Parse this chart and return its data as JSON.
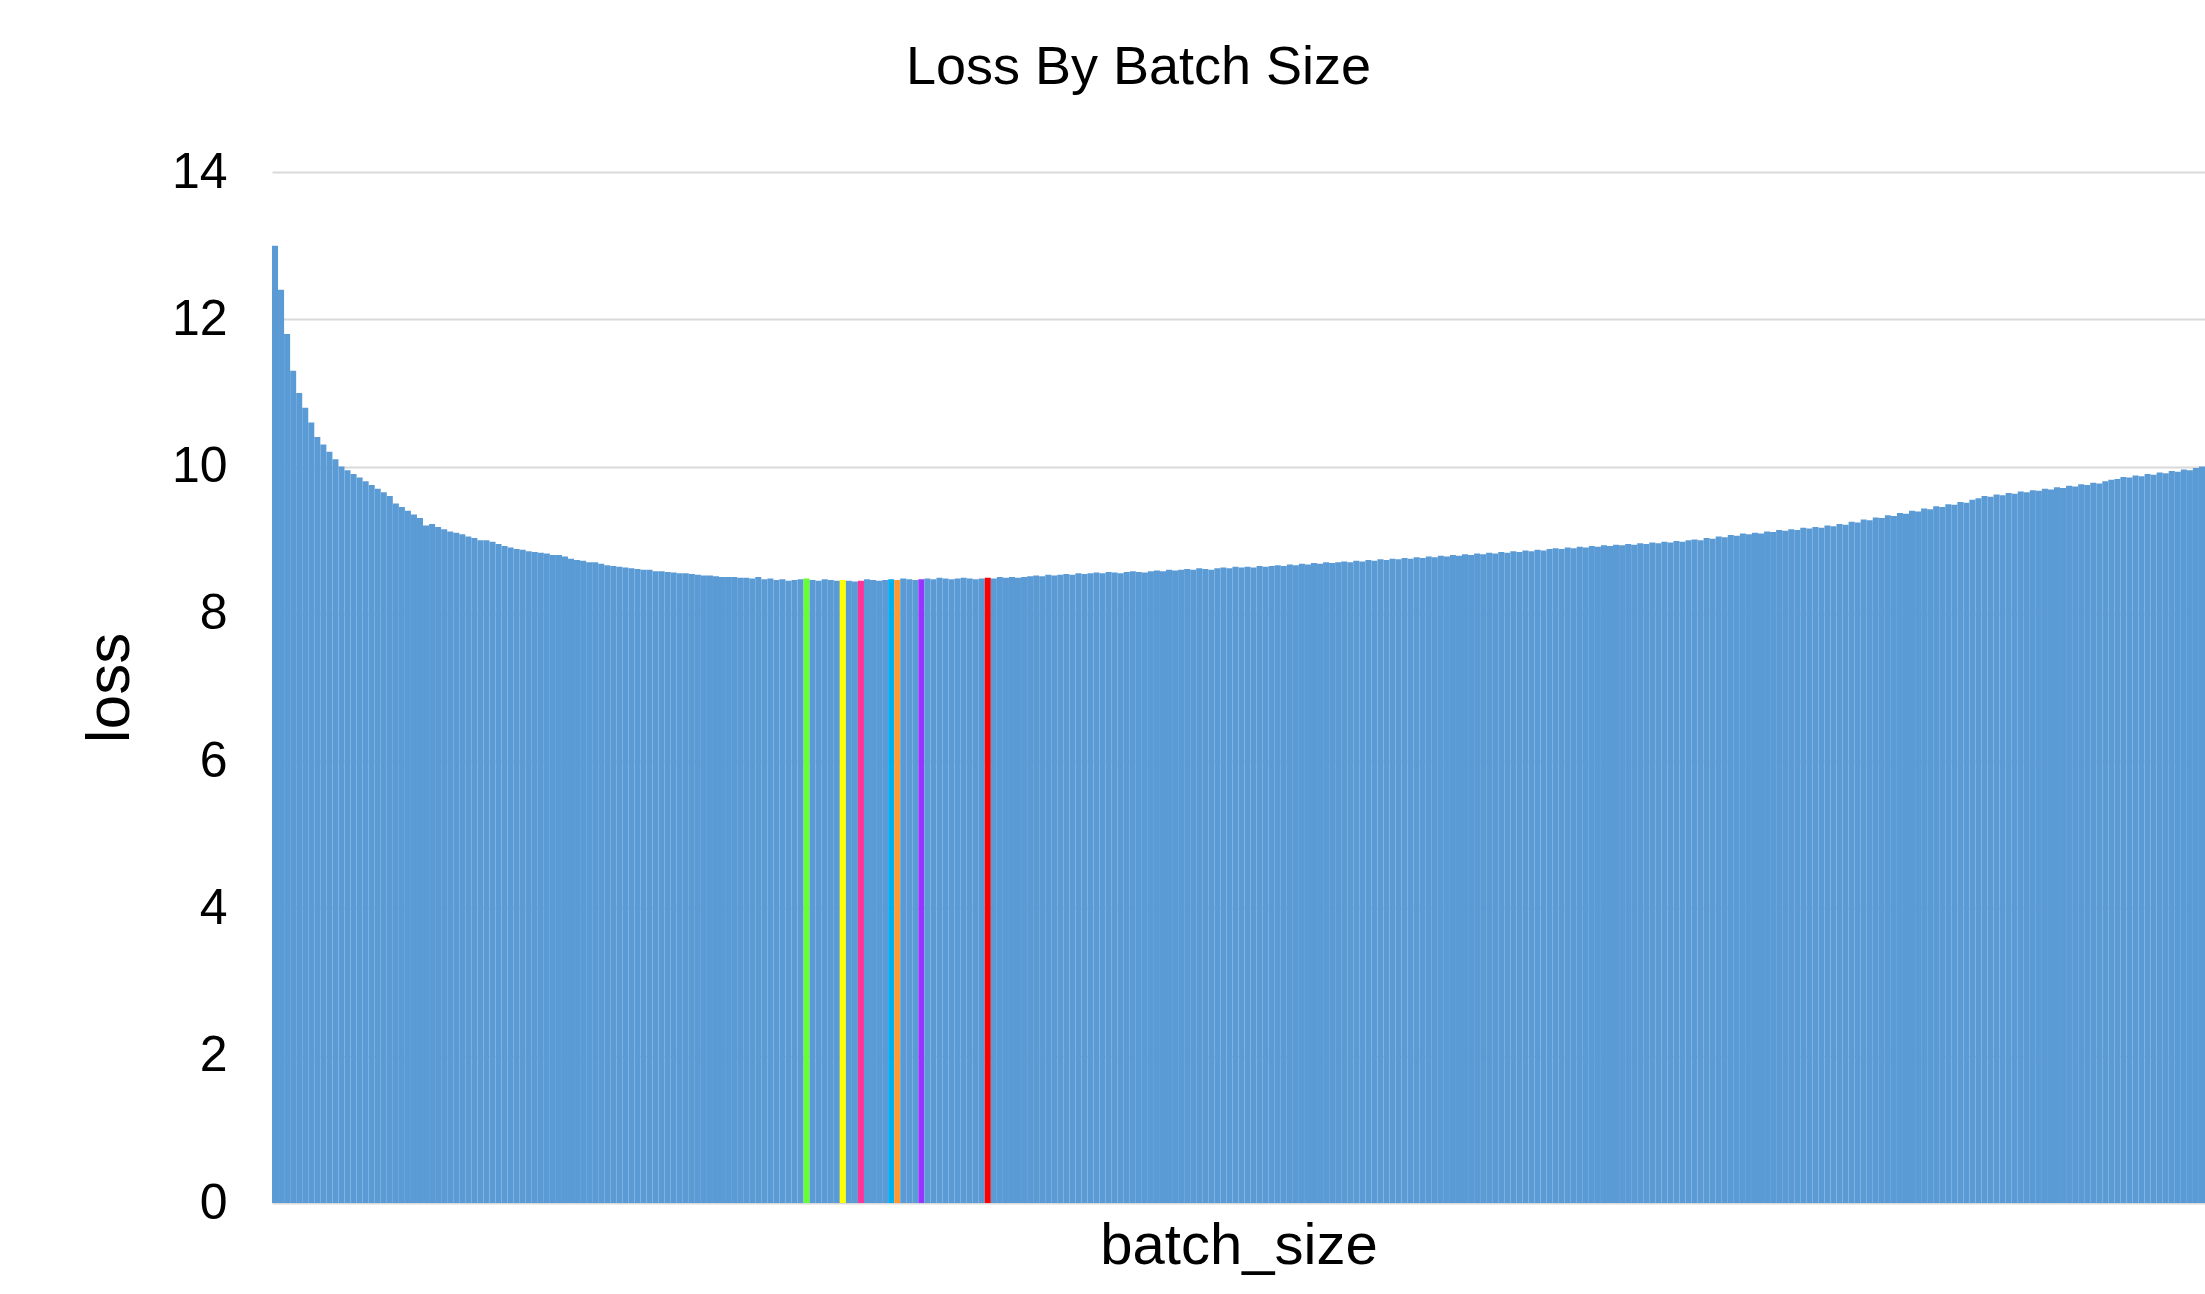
{
  "chart_data": {
    "type": "bar",
    "title": "Loss By Batch Size",
    "xlabel": "batch_size",
    "ylabel": "loss",
    "categories": [
      null,
      null,
      null,
      null,
      null,
      null,
      null,
      null,
      null,
      null,
      null,
      null,
      null,
      null,
      null,
      null,
      null,
      null,
      null,
      null,
      null,
      null,
      null,
      null,
      null,
      null,
      null,
      null,
      null,
      null,
      null,
      null,
      null,
      null,
      null,
      null,
      null,
      null,
      null,
      null,
      null,
      null,
      null,
      null,
      null,
      null,
      null,
      null,
      null,
      null,
      null,
      null,
      null,
      null,
      null,
      null,
      null,
      null,
      null,
      null,
      null,
      null,
      null,
      null,
      null,
      null,
      null,
      null,
      null,
      null,
      null,
      null,
      null,
      null,
      null,
      null,
      null,
      null,
      null,
      null,
      null,
      null,
      null,
      null,
      null,
      null,
      null,
      null,
      null,
      null,
      null,
      null,
      null,
      null,
      null,
      null,
      null,
      null,
      null,
      null,
      null,
      null,
      null,
      null,
      null,
      null,
      null,
      null,
      null,
      null,
      null,
      null,
      null,
      null,
      null,
      null,
      null,
      null,
      null,
      null,
      null,
      null,
      null,
      null,
      null,
      null,
      null,
      null,
      null,
      null,
      null,
      null,
      null,
      null,
      null,
      null,
      null,
      null,
      null,
      null,
      null,
      null,
      null,
      null,
      null,
      null,
      null,
      null,
      null,
      null,
      null,
      null,
      null,
      null,
      null,
      null,
      null,
      null,
      null,
      null,
      null,
      null,
      null,
      null,
      null,
      null,
      null,
      null,
      null,
      null,
      null,
      null,
      null,
      null,
      null,
      null,
      null,
      null,
      null,
      null,
      null,
      null,
      null,
      null,
      null,
      null,
      null,
      null,
      null,
      null,
      null,
      null,
      null,
      null,
      null,
      null,
      null,
      null,
      null,
      null,
      null,
      null,
      null,
      null,
      null,
      null,
      null,
      null,
      null,
      null,
      null,
      null,
      null,
      null,
      null,
      null,
      null,
      null,
      null,
      null,
      null,
      null,
      null,
      null,
      null,
      null,
      null,
      null,
      null,
      null,
      null,
      null,
      null,
      null,
      null,
      null,
      null,
      null,
      null,
      null,
      null,
      null,
      null,
      null,
      null,
      null,
      null,
      null,
      null,
      null,
      null,
      null,
      null,
      null,
      null,
      null,
      null,
      null,
      null,
      null,
      null,
      null,
      null,
      null,
      null,
      null,
      null,
      null,
      null,
      null,
      null,
      null,
      null,
      null,
      null,
      null,
      null,
      null,
      null,
      null,
      null,
      null,
      null,
      null,
      null,
      null,
      null,
      null,
      null,
      null,
      null,
      null,
      null,
      null,
      null,
      null,
      null,
      null,
      null,
      null,
      null,
      null,
      null,
      null,
      null,
      null,
      null,
      null,
      null,
      null,
      null,
      null,
      null,
      null,
      null,
      null,
      null,
      null,
      null,
      null
    ],
    "values": [
      13.0,
      12.4,
      11.8,
      11.3,
      11.0,
      10.8,
      10.6,
      10.4,
      10.3,
      10.2,
      10.1,
      10.0,
      9.95,
      9.9,
      9.85,
      9.8,
      9.75,
      9.7,
      9.65,
      9.6,
      9.5,
      9.45,
      9.4,
      9.35,
      9.3,
      9.2,
      9.22,
      9.18,
      9.15,
      9.12,
      9.1,
      9.08,
      9.05,
      9.03,
      9.0,
      9.0,
      8.98,
      8.95,
      8.92,
      8.9,
      8.88,
      8.87,
      8.85,
      8.84,
      8.83,
      8.82,
      8.8,
      8.8,
      8.78,
      8.75,
      8.73,
      8.72,
      8.7,
      8.7,
      8.68,
      8.66,
      8.65,
      8.64,
      8.63,
      8.62,
      8.61,
      8.6,
      8.6,
      8.58,
      8.58,
      8.57,
      8.56,
      8.55,
      8.55,
      8.54,
      8.53,
      8.52,
      8.52,
      8.51,
      8.5,
      8.5,
      8.5,
      8.49,
      8.49,
      8.48,
      8.5,
      8.47,
      8.48,
      8.46,
      8.47,
      8.45,
      8.46,
      8.47,
      8.48,
      8.46,
      8.45,
      8.47,
      8.46,
      8.45,
      8.46,
      8.45,
      8.44,
      8.45,
      8.47,
      8.46,
      8.45,
      8.46,
      8.47,
      8.46,
      8.48,
      8.47,
      8.46,
      8.47,
      8.48,
      8.47,
      8.49,
      8.48,
      8.47,
      8.48,
      8.49,
      8.48,
      8.47,
      8.48,
      8.49,
      8.48,
      8.5,
      8.49,
      8.5,
      8.49,
      8.5,
      8.51,
      8.52,
      8.51,
      8.53,
      8.52,
      8.53,
      8.54,
      8.53,
      8.55,
      8.54,
      8.55,
      8.56,
      8.55,
      8.57,
      8.56,
      8.55,
      8.57,
      8.58,
      8.57,
      8.56,
      8.58,
      8.59,
      8.58,
      8.6,
      8.59,
      8.6,
      8.61,
      8.6,
      8.62,
      8.61,
      8.6,
      8.62,
      8.63,
      8.62,
      8.64,
      8.63,
      8.64,
      8.63,
      8.65,
      8.64,
      8.65,
      8.66,
      8.65,
      8.67,
      8.66,
      8.68,
      8.67,
      8.69,
      8.68,
      8.7,
      8.69,
      8.7,
      8.71,
      8.7,
      8.72,
      8.71,
      8.73,
      8.72,
      8.74,
      8.73,
      8.75,
      8.74,
      8.76,
      8.75,
      8.77,
      8.76,
      8.78,
      8.77,
      8.79,
      8.78,
      8.8,
      8.79,
      8.81,
      8.8,
      8.82,
      8.81,
      8.83,
      8.82,
      8.84,
      8.83,
      8.85,
      8.84,
      8.86,
      8.85,
      8.87,
      8.86,
      8.88,
      8.89,
      8.88,
      8.9,
      8.89,
      8.91,
      8.9,
      8.92,
      8.91,
      8.93,
      8.92,
      8.94,
      8.93,
      8.95,
      8.94,
      8.96,
      8.95,
      8.97,
      8.96,
      8.98,
      8.97,
      8.99,
      8.98,
      9.0,
      9.01,
      9.0,
      9.03,
      9.02,
      9.05,
      9.04,
      9.07,
      9.06,
      9.09,
      9.08,
      9.1,
      9.09,
      9.12,
      9.11,
      9.14,
      9.13,
      9.15,
      9.14,
      9.17,
      9.16,
      9.18,
      9.17,
      9.2,
      9.19,
      9.22,
      9.21,
      9.25,
      9.24,
      9.28,
      9.27,
      9.31,
      9.3,
      9.34,
      9.33,
      9.37,
      9.36,
      9.4,
      9.39,
      9.43,
      9.42,
      9.46,
      9.45,
      9.49,
      9.48,
      9.52,
      9.51,
      9.55,
      9.57,
      9.6,
      9.59,
      9.62,
      9.61,
      9.64,
      9.63,
      9.66,
      9.65,
      9.68,
      9.67,
      9.7,
      9.69,
      9.72,
      9.71,
      9.74,
      9.73,
      9.76,
      9.75,
      9.78,
      9.77,
      9.8,
      9.82,
      9.83,
      9.86,
      9.85,
      9.88,
      9.87,
      9.9,
      9.89,
      9.92,
      9.91,
      9.94,
      9.93,
      9.96,
      9.95,
      9.98,
      10.0
    ],
    "colors": [
      "#5b9bd5",
      "#5b9bd5",
      "#5b9bd5",
      "#5b9bd5",
      "#5b9bd5",
      "#5b9bd5",
      "#5b9bd5",
      "#5b9bd5",
      "#5b9bd5",
      "#5b9bd5",
      "#5b9bd5",
      "#5b9bd5",
      "#5b9bd5",
      "#5b9bd5",
      "#5b9bd5",
      "#5b9bd5",
      "#5b9bd5",
      "#5b9bd5",
      "#5b9bd5",
      "#5b9bd5",
      "#5b9bd5",
      "#5b9bd5",
      "#5b9bd5",
      "#5b9bd5",
      "#5b9bd5",
      "#5b9bd5",
      "#5b9bd5",
      "#5b9bd5",
      "#5b9bd5",
      "#5b9bd5",
      "#5b9bd5",
      "#5b9bd5",
      "#5b9bd5",
      "#5b9bd5",
      "#5b9bd5",
      "#5b9bd5",
      "#5b9bd5",
      "#5b9bd5",
      "#5b9bd5",
      "#5b9bd5",
      "#5b9bd5",
      "#5b9bd5",
      "#5b9bd5",
      "#5b9bd5",
      "#5b9bd5",
      "#5b9bd5",
      "#5b9bd5",
      "#5b9bd5",
      "#5b9bd5",
      "#5b9bd5",
      "#5b9bd5",
      "#5b9bd5",
      "#5b9bd5",
      "#5b9bd5",
      "#5b9bd5",
      "#5b9bd5",
      "#5b9bd5",
      "#5b9bd5",
      "#5b9bd5",
      "#5b9bd5",
      "#5b9bd5",
      "#5b9bd5",
      "#5b9bd5",
      "#5b9bd5",
      "#5b9bd5",
      "#5b9bd5",
      "#5b9bd5",
      "#5b9bd5",
      "#5b9bd5",
      "#5b9bd5",
      "#5b9bd5",
      "#5b9bd5",
      "#5b9bd5",
      "#5b9bd5",
      "#5b9bd5",
      "#5b9bd5",
      "#5b9bd5",
      "#5b9bd5",
      "#5b9bd5",
      "#5b9bd5",
      "#5b9bd5",
      "#5b9bd5",
      "#5b9bd5",
      "#5b9bd5",
      "#5b9bd5",
      "#5b9bd5",
      "#5b9bd5",
      "#5b9bd5",
      "#66ff33",
      "#5b9bd5",
      "#5b9bd5",
      "#5b9bd5",
      "#5b9bd5",
      "#5b9bd5",
      "#ffff00",
      "#5b9bd5",
      "#5b9bd5",
      "#ff3399",
      "#5b9bd5",
      "#5b9bd5",
      "#5b9bd5",
      "#5b9bd5",
      "#00b0f0",
      "#ff9933",
      "#5b9bd5",
      "#5b9bd5",
      "#5b9bd5",
      "#9933ff",
      "#5b9bd5",
      "#5b9bd5",
      "#5b9bd5",
      "#5b9bd5",
      "#5b9bd5",
      "#5b9bd5",
      "#5b9bd5",
      "#5b9bd5",
      "#5b9bd5",
      "#5b9bd5",
      "#ff0000",
      "#5b9bd5",
      "#5b9bd5",
      "#5b9bd5",
      "#5b9bd5",
      "#5b9bd5",
      "#5b9bd5",
      "#5b9bd5",
      "#5b9bd5",
      "#5b9bd5",
      "#5b9bd5",
      "#5b9bd5",
      "#5b9bd5",
      "#5b9bd5",
      "#5b9bd5",
      "#5b9bd5",
      "#5b9bd5",
      "#5b9bd5",
      "#5b9bd5",
      "#5b9bd5",
      "#5b9bd5",
      "#5b9bd5",
      "#5b9bd5",
      "#5b9bd5",
      "#5b9bd5",
      "#5b9bd5",
      "#5b9bd5",
      "#5b9bd5",
      "#5b9bd5",
      "#5b9bd5",
      "#5b9bd5",
      "#5b9bd5",
      "#5b9bd5",
      "#5b9bd5",
      "#5b9bd5",
      "#5b9bd5",
      "#5b9bd5",
      "#5b9bd5",
      "#5b9bd5",
      "#5b9bd5",
      "#5b9bd5",
      "#5b9bd5",
      "#5b9bd5",
      "#5b9bd5",
      "#5b9bd5",
      "#5b9bd5",
      "#5b9bd5",
      "#5b9bd5",
      "#5b9bd5",
      "#5b9bd5",
      "#5b9bd5",
      "#5b9bd5",
      "#5b9bd5",
      "#5b9bd5",
      "#5b9bd5",
      "#5b9bd5",
      "#5b9bd5",
      "#5b9bd5",
      "#5b9bd5",
      "#5b9bd5",
      "#5b9bd5",
      "#5b9bd5",
      "#5b9bd5",
      "#5b9bd5",
      "#5b9bd5",
      "#5b9bd5",
      "#5b9bd5",
      "#5b9bd5",
      "#5b9bd5",
      "#5b9bd5",
      "#5b9bd5",
      "#5b9bd5",
      "#5b9bd5",
      "#5b9bd5",
      "#5b9bd5",
      "#5b9bd5",
      "#5b9bd5",
      "#5b9bd5",
      "#5b9bd5",
      "#5b9bd5",
      "#5b9bd5",
      "#5b9bd5",
      "#5b9bd5",
      "#5b9bd5",
      "#5b9bd5",
      "#5b9bd5",
      "#5b9bd5",
      "#5b9bd5",
      "#5b9bd5",
      "#5b9bd5",
      "#5b9bd5",
      "#5b9bd5",
      "#5b9bd5",
      "#5b9bd5",
      "#5b9bd5",
      "#5b9bd5",
      "#5b9bd5",
      "#5b9bd5",
      "#5b9bd5",
      "#5b9bd5",
      "#5b9bd5",
      "#5b9bd5",
      "#5b9bd5",
      "#5b9bd5",
      "#5b9bd5",
      "#5b9bd5",
      "#5b9bd5",
      "#5b9bd5",
      "#5b9bd5",
      "#5b9bd5",
      "#5b9bd5",
      "#5b9bd5",
      "#5b9bd5",
      "#5b9bd5",
      "#5b9bd5",
      "#5b9bd5",
      "#5b9bd5",
      "#5b9bd5",
      "#5b9bd5",
      "#5b9bd5",
      "#5b9bd5",
      "#5b9bd5",
      "#5b9bd5",
      "#5b9bd5",
      "#5b9bd5",
      "#5b9bd5",
      "#5b9bd5",
      "#5b9bd5",
      "#5b9bd5",
      "#5b9bd5",
      "#5b9bd5",
      "#5b9bd5",
      "#5b9bd5",
      "#5b9bd5",
      "#5b9bd5",
      "#5b9bd5",
      "#5b9bd5",
      "#5b9bd5",
      "#5b9bd5",
      "#5b9bd5",
      "#5b9bd5",
      "#5b9bd5",
      "#5b9bd5",
      "#5b9bd5",
      "#5b9bd5",
      "#5b9bd5",
      "#5b9bd5",
      "#5b9bd5",
      "#5b9bd5",
      "#5b9bd5",
      "#5b9bd5",
      "#5b9bd5",
      "#5b9bd5",
      "#5b9bd5",
      "#5b9bd5",
      "#5b9bd5",
      "#5b9bd5",
      "#5b9bd5",
      "#5b9bd5",
      "#5b9bd5",
      "#5b9bd5",
      "#5b9bd5",
      "#5b9bd5",
      "#5b9bd5",
      "#5b9bd5",
      "#5b9bd5",
      "#5b9bd5",
      "#5b9bd5",
      "#5b9bd5",
      "#5b9bd5",
      "#5b9bd5",
      "#5b9bd5",
      "#5b9bd5",
      "#5b9bd5",
      "#5b9bd5",
      "#5b9bd5",
      "#5b9bd5",
      "#5b9bd5",
      "#5b9bd5",
      "#5b9bd5",
      "#5b9bd5",
      "#5b9bd5",
      "#5b9bd5",
      "#5b9bd5",
      "#5b9bd5",
      "#5b9bd5",
      "#5b9bd5",
      "#5b9bd5",
      "#5b9bd5",
      "#5b9bd5",
      "#5b9bd5",
      "#5b9bd5",
      "#5b9bd5",
      "#5b9bd5",
      "#5b9bd5",
      "#5b9bd5",
      "#5b9bd5",
      "#5b9bd5",
      "#5b9bd5",
      "#5b9bd5",
      "#5b9bd5",
      "#5b9bd5"
    ],
    "ylim": [
      0,
      14
    ],
    "yticks": [
      0,
      2,
      4,
      6,
      8,
      10,
      12,
      14
    ],
    "grid": "y",
    "tick_labels": "y"
  }
}
